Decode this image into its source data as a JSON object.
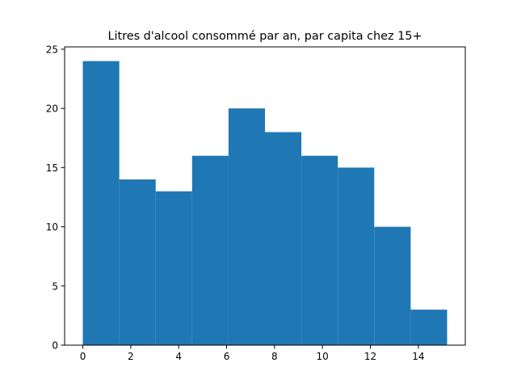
{
  "chart_data": {
    "type": "bar",
    "title": "Litres d'alcool consommé par an, par capita chez 15+",
    "xlabel": "",
    "ylabel": "",
    "bins": [
      {
        "start": 0.0,
        "end": 1.52,
        "count": 24
      },
      {
        "start": 1.52,
        "end": 3.04,
        "count": 14
      },
      {
        "start": 3.04,
        "end": 4.56,
        "count": 13
      },
      {
        "start": 4.56,
        "end": 6.08,
        "count": 16
      },
      {
        "start": 6.08,
        "end": 7.6,
        "count": 20
      },
      {
        "start": 7.6,
        "end": 9.12,
        "count": 18
      },
      {
        "start": 9.12,
        "end": 10.64,
        "count": 16
      },
      {
        "start": 10.64,
        "end": 12.16,
        "count": 15
      },
      {
        "start": 12.16,
        "end": 13.68,
        "count": 10
      },
      {
        "start": 13.68,
        "end": 15.2,
        "count": 3
      }
    ],
    "xlim": [
      -0.76,
      15.96
    ],
    "ylim": [
      0,
      25.2
    ],
    "xticks": [
      0,
      2,
      4,
      6,
      8,
      10,
      12,
      14
    ],
    "yticks": [
      0,
      5,
      10,
      15,
      20,
      25
    ],
    "grid": false,
    "bar_color": "#1f77b4"
  }
}
